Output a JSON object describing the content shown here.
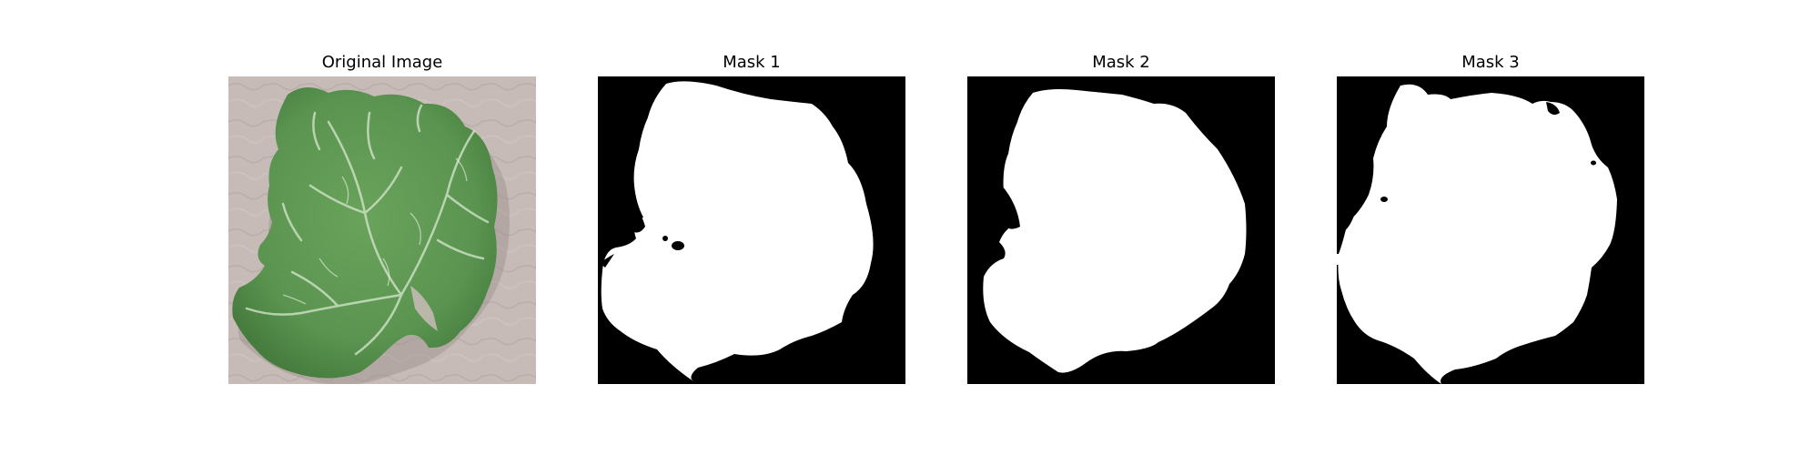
{
  "figure": {
    "panels": [
      {
        "title": "Original Image"
      },
      {
        "title": "Mask 1"
      },
      {
        "title": "Mask 2"
      },
      {
        "title": "Mask 3"
      }
    ]
  },
  "colors": {
    "background": "#c4b9b4",
    "leaf": "#5f9a52",
    "leaf_dark": "#3f7537",
    "vein": "#d8e8cf",
    "mask_bg": "#000000",
    "mask_fg": "#ffffff"
  }
}
